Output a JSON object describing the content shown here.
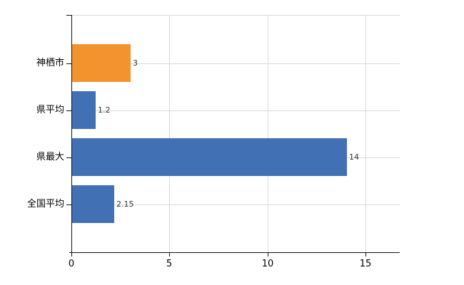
{
  "chart_data": {
    "type": "bar",
    "orientation": "horizontal",
    "title": "",
    "xlabel": "",
    "ylabel": "",
    "categories": [
      "神栖市",
      "県平均",
      "県最大",
      "全国平均"
    ],
    "values": [
      3,
      1.2,
      14,
      2.15
    ],
    "value_labels": [
      "3",
      "1.2",
      "14",
      "2.15"
    ],
    "bar_colors": [
      "#F2932E",
      "#4170B4",
      "#4170B4",
      "#4170B4"
    ],
    "x_ticks": [
      0,
      5,
      10,
      15
    ],
    "x_tick_labels": [
      "0",
      "5",
      "10",
      "15"
    ],
    "xlim": [
      0,
      16.75
    ],
    "grid": true,
    "legend": null,
    "colors": {
      "grid": "#d9d9d9",
      "axis": "#111111",
      "category_text": "#000000",
      "value_text": "#333333",
      "background": "#ffffff"
    }
  }
}
